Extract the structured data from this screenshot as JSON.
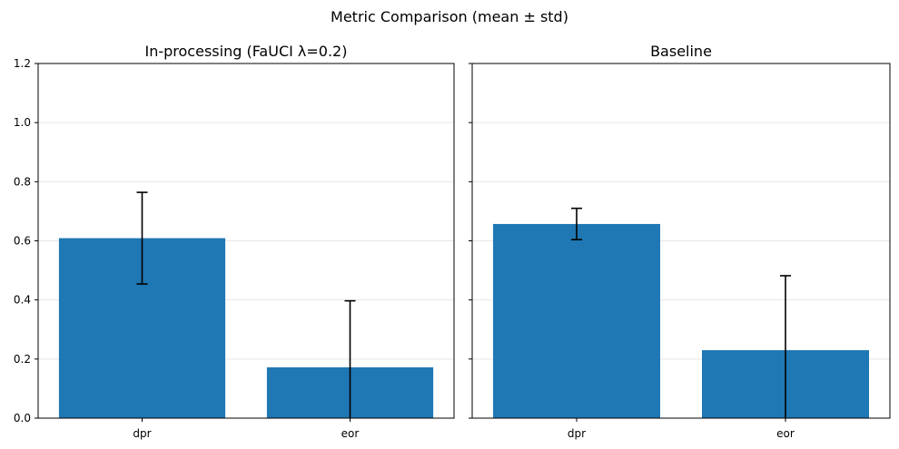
{
  "figure": {
    "title": "Metric Comparison (mean ± std)"
  },
  "chart_data": [
    {
      "type": "bar",
      "title": "In-processing (FaUCI λ=0.2)",
      "categories": [
        "dpr",
        "eor"
      ],
      "values": [
        0.609,
        0.172
      ],
      "errors": [
        0.155,
        0.225
      ],
      "ylim": [
        0,
        1.2
      ],
      "yticks": [
        0.0,
        0.2,
        0.4,
        0.6,
        0.8,
        1.0,
        1.2
      ],
      "ytick_labels": [
        "0.0",
        "0.2",
        "0.4",
        "0.6",
        "0.8",
        "1.0",
        "1.2"
      ],
      "grid": "y",
      "color": "#1f77b4"
    },
    {
      "type": "bar",
      "title": "Baseline",
      "categories": [
        "dpr",
        "eor"
      ],
      "values": [
        0.657,
        0.23
      ],
      "errors": [
        0.053,
        0.252
      ],
      "ylim": [
        0,
        1.2
      ],
      "yticks": [
        0.0,
        0.2,
        0.4,
        0.6,
        0.8,
        1.0,
        1.2
      ],
      "ytick_labels": [],
      "grid": "y",
      "color": "#1f77b4"
    }
  ]
}
